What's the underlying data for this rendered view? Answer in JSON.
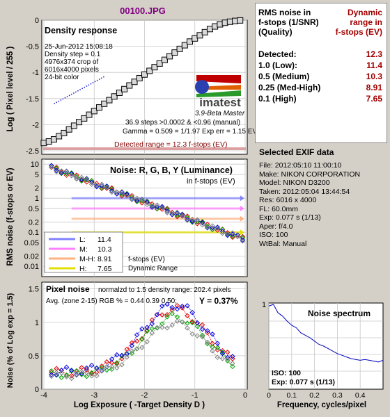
{
  "title": "00100.JPG",
  "table": {
    "col1_header": [
      "RMS noise in",
      "f-stops (1/SNR)",
      "(Quality)"
    ],
    "col2_header": [
      "Dynamic",
      "range in",
      "f-stops (EV)"
    ],
    "rows": [
      {
        "label": "Detected:",
        "value": "12.3"
      },
      {
        "label": "1.0  (Low):",
        "value": "11.4"
      },
      {
        "label": "0.5  (Medium)",
        "value": "10.3"
      },
      {
        "label": "0.25 (Med-High)",
        "value": "8.91"
      },
      {
        "label": "0.1  (High)",
        "value": "7.65"
      }
    ]
  },
  "exif": {
    "title": "Selected EXIF data",
    "lines": [
      "File:  2012:05:10 11:00:10",
      "Make:  NIKON CORPORATION",
      "Model: NIKON D3200",
      "Taken:  2012:05:04 13:44:54",
      "Res:   6016 x 4000",
      "FL:   60.0mm",
      "Exp:  0.077 s  (1/13)",
      "Aper:  f/4.0",
      "ISO:   100",
      "WtBal: Manual"
    ]
  },
  "chart_data": [
    {
      "type": "line",
      "title": "Density response",
      "ylabel": "Log ( Pixel level / 255 )",
      "xlim": [
        -4,
        0
      ],
      "ylim": [
        -2.5,
        0
      ],
      "yticks": [
        "0",
        "-0.5",
        "-1",
        "-1.5",
        "-2",
        "-2.5"
      ],
      "info": [
        "25-Jun-2012 15:08:18",
        "Density step = 0.1",
        "4976x374 crop of",
        "6016x4000 pixels",
        "24-bit color"
      ],
      "logo": "imatest",
      "logo_sub": "3.9-Beta  Master",
      "stats": [
        "36.9 steps >0.0002 & <0.96 (manual)",
        "Gamma = 0.509 = 1/1.97  Exp err = 1.15 EV"
      ],
      "detected_range": "Detected range = 12.3 f-stops (EV)",
      "series": [
        {
          "name": "",
          "x": [
            -4,
            -3.9,
            -3.8,
            -3.7,
            -3.6,
            -3.5,
            -3.4,
            -3.3,
            -3.2,
            -3.1,
            -3.0,
            -2.9,
            -2.8,
            -2.7,
            -2.6,
            -2.5,
            -2.4,
            -2.3,
            -2.2,
            -2.1,
            -2.0,
            -1.9,
            -1.8,
            -1.7,
            -1.6,
            -1.5,
            -1.4,
            -1.3,
            -1.2,
            -1.1,
            -1.0,
            -0.9,
            -0.8,
            -0.7,
            -0.6,
            -0.5,
            -0.4,
            -0.3,
            -0.2,
            -0.1
          ],
          "y": [
            -2.35,
            -2.32,
            -2.28,
            -2.22,
            -2.16,
            -2.09,
            -2.02,
            -1.95,
            -1.88,
            -1.81,
            -1.74,
            -1.67,
            -1.6,
            -1.53,
            -1.46,
            -1.39,
            -1.32,
            -1.25,
            -1.18,
            -1.11,
            -1.04,
            -0.97,
            -0.9,
            -0.83,
            -0.76,
            -0.69,
            -0.62,
            -0.55,
            -0.48,
            -0.41,
            -0.35,
            -0.29,
            -0.23,
            -0.17,
            -0.12,
            -0.08,
            -0.05,
            -0.03,
            -0.015,
            -0.005
          ]
        },
        {
          "name": "",
          "x": [
            -3.8,
            -2.8
          ],
          "y": [
            -1.6,
            -1.08
          ]
        }
      ]
    },
    {
      "type": "line",
      "title": "Noise: R, G, B, Y (Luminance)",
      "subtitle": "in f-stops (EV)",
      "ylabel": "RMS noise (f-stops or EV)",
      "yticks": [
        "10",
        "5",
        "2",
        "1",
        "0.5",
        "0.2",
        "0.1",
        "0.05",
        "0.02",
        "0.01"
      ],
      "legend": [
        {
          "name": "L:",
          "value": "11.4",
          "color": "#8080ff"
        },
        {
          "name": "M:",
          "value": "10.3",
          "color": "#ff80ff"
        },
        {
          "name": "M-H:",
          "value": "8.91",
          "color": "#ffb080"
        },
        {
          "name": "H:",
          "value": "7.65",
          "color": "#e0e000"
        }
      ],
      "note": [
        "f-stops (EV)",
        "Dynamic Range"
      ]
    },
    {
      "type": "line",
      "title": "Pixel noise",
      "subtitle": "normalzd to 1.5 density range: 202.4 pixels",
      "avg_text": "Avg. (zone 2-15) RGB % = 0.44  0.39  0.50;",
      "y_result": "Y = 0.37%",
      "ylabel": "Noise (% of Log exp = 1.5)",
      "xlabel": "Log Exposure ( -Target Density D )",
      "xticks": [
        "-4",
        "-3",
        "-2",
        "-1",
        "0"
      ],
      "yticks": [
        "1.5",
        "1",
        "0.5",
        "0"
      ]
    },
    {
      "type": "line",
      "title": "Noise spectrum",
      "xlabel": "Frequency, cycles/pixel",
      "xticks": [
        "0",
        "0.1",
        "0.2",
        "0.3",
        "0.4"
      ],
      "ytick": "1",
      "iso": "ISO:   100",
      "exp": "Exp:   0.077 s    (1/13)",
      "x": [
        0,
        0.02,
        0.04,
        0.06,
        0.08,
        0.1,
        0.12,
        0.14,
        0.16,
        0.18,
        0.2,
        0.22,
        0.24,
        0.26,
        0.28,
        0.3,
        0.32,
        0.34,
        0.36,
        0.38,
        0.4,
        0.42,
        0.44,
        0.46,
        0.48,
        0.5
      ],
      "y": [
        0.98,
        1.0,
        0.9,
        0.86,
        0.8,
        0.75,
        0.72,
        0.66,
        0.63,
        0.6,
        0.56,
        0.52,
        0.5,
        0.47,
        0.44,
        0.41,
        0.39,
        0.37,
        0.35,
        0.34,
        0.33,
        0.34,
        0.33,
        0.32,
        0.31,
        0.33
      ]
    }
  ]
}
